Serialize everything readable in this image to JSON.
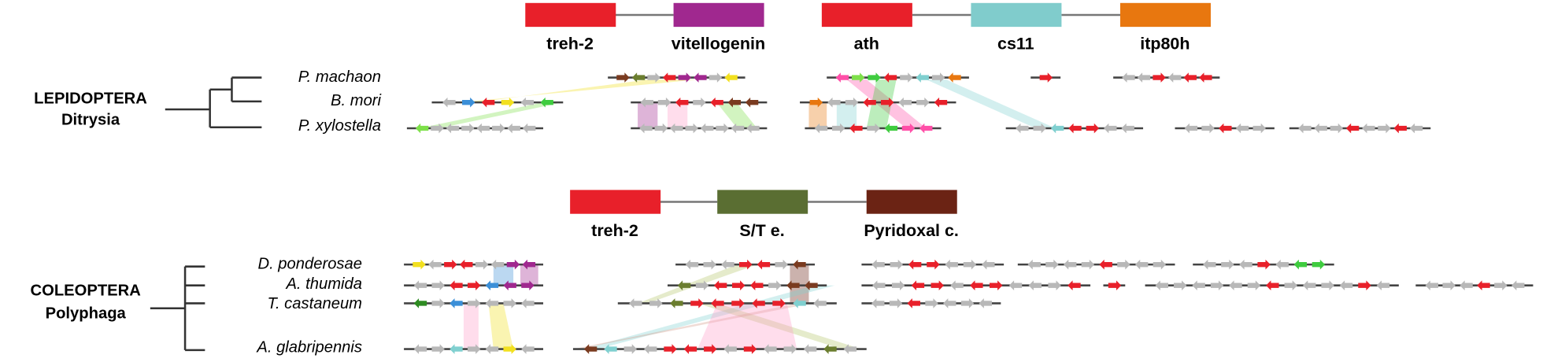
{
  "sections": [
    {
      "order": "LEPIDOPTERA",
      "clade": "Ditrysia",
      "legend": [
        {
          "label": "treh-2",
          "color": "#e8202a"
        },
        {
          "label": "vitellogenin",
          "color": "#a0288f"
        },
        {
          "label": "ath",
          "color": "#e8202a"
        },
        {
          "label": "cs11",
          "color": "#80cccc"
        },
        {
          "label": "itp80h",
          "color": "#e8770f"
        }
      ],
      "species": [
        "P. machaon",
        "B. mori",
        "P. xylostella"
      ]
    },
    {
      "order": "COLEOPTERA",
      "clade": "Polyphaga",
      "legend": [
        {
          "label": "treh-2",
          "color": "#e8202a"
        },
        {
          "label": "S/T e.",
          "color": "#5a6e32"
        },
        {
          "label": "Pyridoxal c.",
          "color": "#6b2314"
        }
      ],
      "species": [
        "D. ponderosae",
        "A. thumida",
        "T. castaneum",
        "A. glabripennis"
      ]
    }
  ]
}
